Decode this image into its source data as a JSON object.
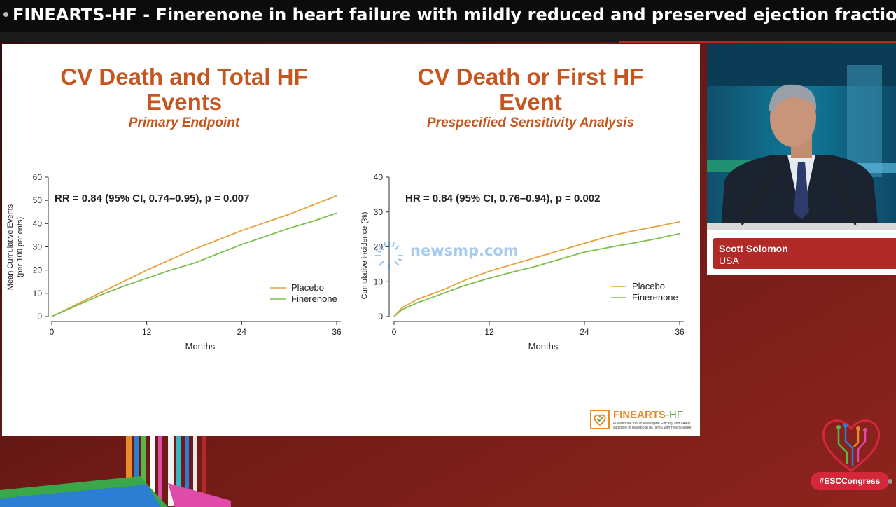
{
  "header": {
    "title": "FINEARTS-HF - Finerenone in heart failure with mildly reduced and preserved ejection fraction"
  },
  "slide": {
    "left_panel": {
      "title_line1": "CV Death and Total HF",
      "title_line2": "Events",
      "subtitle": "Primary Endpoint",
      "stat": "RR = 0.84 (95% CI, 0.74–0.95), p = 0.007",
      "ylabel_line1": "Mean Cumulative Events",
      "ylabel_line2": "(per 100 patients)",
      "xlabel": "Months",
      "legend_placebo": "Placebo",
      "legend_finerenone": "Finerenone"
    },
    "right_panel": {
      "title_line1": "CV Death or First HF",
      "title_line2": "Event",
      "subtitle": "Prespecified Sensitivity Analysis",
      "stat": "HR = 0.84 (95% CI, 0.76–0.94), p = 0.002",
      "ylabel": "Cumulative incidence (%)",
      "xlabel": "Months",
      "legend_placebo": "Placebo",
      "legend_finerenone": "Finerenone"
    },
    "watermark": "newsmp.com",
    "logo": {
      "name": "FINEARTS",
      "suffix": "-HF",
      "tagline": "FINerenone trial to investigate Efficacy and sAfety superioR to placebo in paTientS with Heart Failure"
    }
  },
  "speaker": {
    "name": "Scott Solomon",
    "country": "USA"
  },
  "hashtag": "#ESCCongress",
  "colors": {
    "placebo": "#e8a23a",
    "finerenone": "#7fbf4d",
    "title": "#c5561f",
    "nameplate": "#b22a28",
    "hashtag": "#d4283a"
  },
  "chart_data": [
    {
      "type": "line",
      "title": "CV Death and Total HF Events",
      "subtitle": "Primary Endpoint",
      "xlabel": "Months",
      "ylabel": "Mean Cumulative Events (per 100 patients)",
      "xlim": [
        0,
        36
      ],
      "ylim": [
        0,
        60
      ],
      "xticks": [
        0,
        12,
        24,
        36
      ],
      "yticks": [
        0,
        10,
        20,
        30,
        40,
        50,
        60
      ],
      "legend": "right-middle",
      "series": [
        {
          "name": "Placebo",
          "color": "#e8a23a",
          "x": [
            0,
            3,
            6,
            9,
            12,
            15,
            18,
            21,
            24,
            27,
            30,
            33,
            36
          ],
          "y": [
            0,
            5,
            10,
            15,
            20,
            24.5,
            29,
            33,
            37,
            40.5,
            44,
            48,
            52
          ]
        },
        {
          "name": "Finerenone",
          "color": "#7fbf4d",
          "x": [
            0,
            3,
            6,
            9,
            12,
            15,
            18,
            21,
            24,
            27,
            30,
            33,
            36
          ],
          "y": [
            0,
            4.5,
            9,
            13,
            16.5,
            20,
            23,
            27,
            31,
            34.5,
            38,
            41,
            44.5
          ]
        }
      ]
    },
    {
      "type": "line",
      "title": "CV Death or First HF Event",
      "subtitle": "Prespecified Sensitivity Analysis",
      "xlabel": "Months",
      "ylabel": "Cumulative incidence (%)",
      "xlim": [
        0,
        36
      ],
      "ylim": [
        0,
        40
      ],
      "xticks": [
        0,
        12,
        24,
        36
      ],
      "yticks": [
        0,
        10,
        20,
        30,
        40
      ],
      "legend": "right-middle",
      "series": [
        {
          "name": "Placebo",
          "color": "#e8a23a",
          "x": [
            0,
            1,
            3,
            6,
            9,
            12,
            15,
            18,
            21,
            24,
            27,
            30,
            33,
            36
          ],
          "y": [
            0,
            2.5,
            5,
            7.5,
            10.5,
            13,
            15,
            17,
            19,
            21,
            23,
            24.5,
            25.8,
            27.2
          ]
        },
        {
          "name": "Finerenone",
          "color": "#7fbf4d",
          "x": [
            0,
            1,
            3,
            6,
            9,
            12,
            15,
            18,
            21,
            24,
            27,
            30,
            33,
            36
          ],
          "y": [
            0,
            2,
            4,
            6.5,
            9,
            11,
            12.8,
            14.5,
            16.5,
            18.5,
            19.8,
            21,
            22.3,
            23.8
          ]
        }
      ]
    }
  ]
}
